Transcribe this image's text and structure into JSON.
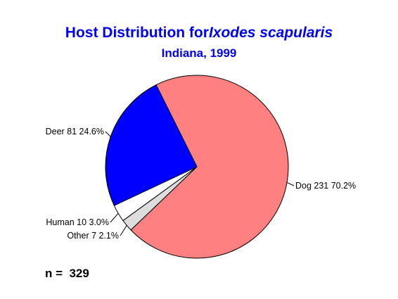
{
  "chart_data": {
    "type": "pie",
    "title_prefix": "Host Distribution for",
    "title_species": "Ixodes scapularis",
    "subtitle": "Indiana, 1999",
    "slices": [
      {
        "category": "Dog",
        "count": "231",
        "percent": "70.2%",
        "value": 231,
        "color": "#ff8080"
      },
      {
        "category": "Other",
        "count": "7",
        "percent": "2.1%",
        "value": 7,
        "color": "#dddddd"
      },
      {
        "category": "Human",
        "count": "10",
        "percent": "3.0%",
        "value": 10,
        "color": "#ffffff"
      },
      {
        "category": "Deer",
        "count": "81",
        "percent": "24.6%",
        "value": 81,
        "color": "#0000ff"
      }
    ],
    "total_label": "n =  329",
    "title_color": "#0000ff"
  }
}
